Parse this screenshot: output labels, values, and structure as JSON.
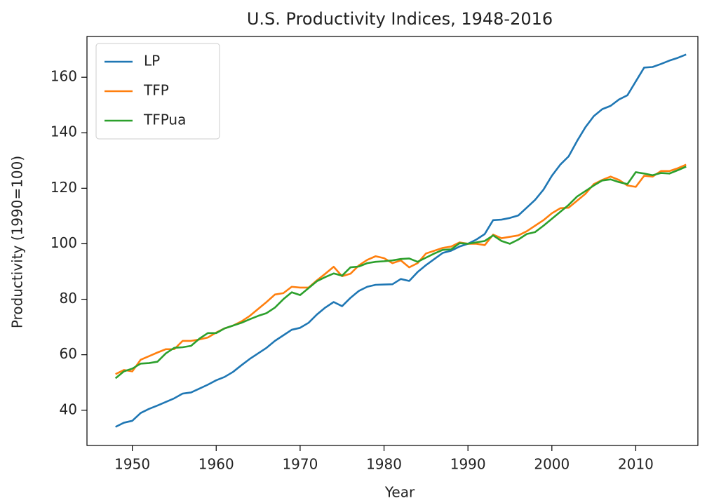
{
  "chart_data": {
    "type": "line",
    "title": "U.S. Productivity Indices, 1948-2016",
    "xlabel": "Year",
    "ylabel": "Productivity (1990=100)",
    "x": [
      1948,
      1949,
      1950,
      1951,
      1952,
      1953,
      1954,
      1955,
      1956,
      1957,
      1958,
      1959,
      1960,
      1961,
      1962,
      1963,
      1964,
      1965,
      1966,
      1967,
      1968,
      1969,
      1970,
      1971,
      1972,
      1973,
      1974,
      1975,
      1976,
      1977,
      1978,
      1979,
      1980,
      1981,
      1982,
      1983,
      1984,
      1985,
      1986,
      1987,
      1988,
      1989,
      1990,
      1991,
      1992,
      1993,
      1994,
      1995,
      1996,
      1997,
      1998,
      1999,
      2000,
      2001,
      2002,
      2003,
      2004,
      2005,
      2006,
      2007,
      2008,
      2009,
      2010,
      2011,
      2012,
      2013,
      2014,
      2015,
      2016
    ],
    "series": [
      {
        "name": "LP",
        "color": "#1f77b4",
        "values": [
          34,
          35.5,
          36.2,
          39,
          40.5,
          41.7,
          43,
          44.3,
          46,
          46.4,
          47.8,
          49.2,
          50.8,
          52,
          53.8,
          56.2,
          58.5,
          60.5,
          62.5,
          65,
          67,
          69,
          69.7,
          71.5,
          74.5,
          77,
          79,
          77.5,
          80.5,
          83,
          84.5,
          85.2,
          85.3,
          85.4,
          87.3,
          86.6,
          89.8,
          92.3,
          94.5,
          96.7,
          97.5,
          99,
          100,
          101.5,
          103.5,
          108.5,
          108.7,
          109.3,
          110.2,
          113,
          115.8,
          119.5,
          124.5,
          128.5,
          131.5,
          137,
          142,
          146,
          148.5,
          149.7,
          152,
          153.5,
          158.5,
          163.5,
          163.7,
          164.8,
          166,
          167,
          168.2
        ]
      },
      {
        "name": "TFP",
        "color": "#ff7f0e",
        "values": [
          53,
          54.5,
          54,
          58.2,
          59.5,
          60.8,
          62,
          62,
          65,
          65,
          65.5,
          66.2,
          68,
          69.5,
          70.5,
          72,
          74,
          76.5,
          79,
          81.7,
          82.2,
          84.5,
          84.2,
          84.2,
          86.8,
          89.2,
          91.7,
          88.3,
          89.2,
          92.2,
          94.2,
          95.5,
          94.8,
          93,
          94,
          91.5,
          93,
          96.5,
          97.5,
          98.5,
          99,
          100.5,
          100,
          100,
          99.5,
          103.3,
          102,
          102.5,
          103,
          104.5,
          106.5,
          108.5,
          111,
          112.8,
          113,
          115.5,
          118,
          121.5,
          123,
          124.2,
          123,
          121,
          120.5,
          124.5,
          124.2,
          126.2,
          126.2,
          127.2,
          128.5
        ]
      },
      {
        "name": "TFPua",
        "color": "#2ca02c",
        "values": [
          51.5,
          54,
          55,
          56.8,
          57,
          57.5,
          60.5,
          62.5,
          62.7,
          63.2,
          65.8,
          67.8,
          67.8,
          69.5,
          70.5,
          71.5,
          72.8,
          74,
          75,
          77,
          80,
          82.5,
          81.5,
          84,
          86.5,
          88,
          89.3,
          88.5,
          91.5,
          91.8,
          93,
          93.5,
          93.7,
          94,
          94.5,
          94.7,
          93.5,
          95,
          96.5,
          97.8,
          98,
          100.2,
          100,
          100.5,
          101,
          103,
          101,
          100,
          101.5,
          103.5,
          104.2,
          106.5,
          109,
          111.5,
          114,
          117,
          119,
          121,
          122.8,
          123.2,
          122.2,
          121.5,
          125.8,
          125.3,
          124.7,
          125.5,
          125.3,
          126.5,
          127.8
        ]
      }
    ],
    "xlim": [
      1944.6,
      2017.4
    ],
    "ylim": [
      27.3,
      174.7
    ],
    "xticks": [
      1950,
      1960,
      1970,
      1980,
      1990,
      2000,
      2010
    ],
    "yticks": [
      40,
      60,
      80,
      100,
      120,
      140,
      160
    ],
    "grid": false,
    "legend": "upper left"
  }
}
